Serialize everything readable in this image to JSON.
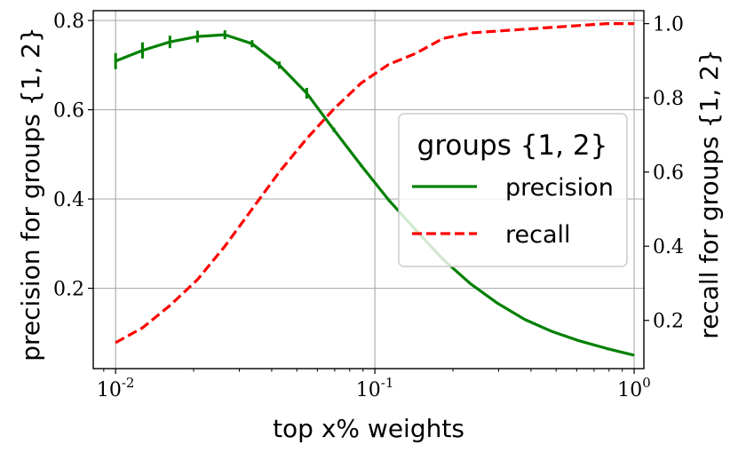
{
  "chart_data": {
    "type": "line",
    "xlabel": "top x% weights",
    "ylabel_left": "precision for groups {1, 2}",
    "ylabel_right": "recall for groups {1, 2}",
    "x_scale": "log",
    "xlim": [
      0.0082,
      1.09
    ],
    "ylim_left": [
      0.02,
      0.822
    ],
    "ylim_right": [
      0.07,
      1.035
    ],
    "x_ticks": [
      {
        "value": 0.01,
        "label": "10^{-2}"
      },
      {
        "value": 0.1,
        "label": "10^{-1}"
      },
      {
        "value": 1,
        "label": "10^{0}"
      }
    ],
    "y_ticks_left": [
      0.2,
      0.4,
      0.6,
      0.8
    ],
    "y_ticks_right": [
      0.2,
      0.4,
      0.6,
      0.8,
      1.0
    ],
    "grid": true,
    "legend": {
      "title": "groups {1, 2}",
      "placement": "center-right",
      "entries": [
        {
          "label": "precision",
          "color": "#008000",
          "style": "solid"
        },
        {
          "label": "recall",
          "color": "#ff0000",
          "style": "dashed"
        }
      ]
    },
    "x": [
      0.01,
      0.0127,
      0.0162,
      0.0207,
      0.0264,
      0.0336,
      0.0428,
      0.0546,
      0.0695,
      0.0886,
      0.113,
      0.144,
      0.183,
      0.234,
      0.298,
      0.379,
      0.483,
      0.616,
      0.785,
      1.0
    ],
    "series": [
      {
        "name": "precision",
        "axis": "left",
        "color": "#008000",
        "style": "solid",
        "values": [
          0.709,
          0.733,
          0.752,
          0.764,
          0.768,
          0.748,
          0.7,
          0.637,
          0.555,
          0.475,
          0.398,
          0.33,
          0.265,
          0.21,
          0.166,
          0.13,
          0.103,
          0.082,
          0.065,
          0.05
        ],
        "errors": [
          0.018,
          0.018,
          0.014,
          0.013,
          0.01,
          0.008,
          0.008,
          0.012,
          0.005,
          0.003,
          0.003,
          0.002,
          0.002,
          0.001,
          0.001,
          0.001,
          0.001,
          0.001,
          0.001,
          0.001
        ]
      },
      {
        "name": "recall",
        "axis": "right",
        "color": "#ff0000",
        "style": "dashed",
        "values": [
          0.14,
          0.18,
          0.24,
          0.31,
          0.4,
          0.5,
          0.6,
          0.69,
          0.77,
          0.84,
          0.89,
          0.92,
          0.96,
          0.975,
          0.98,
          0.985,
          0.99,
          0.995,
          1.0,
          1.0
        ]
      }
    ]
  }
}
